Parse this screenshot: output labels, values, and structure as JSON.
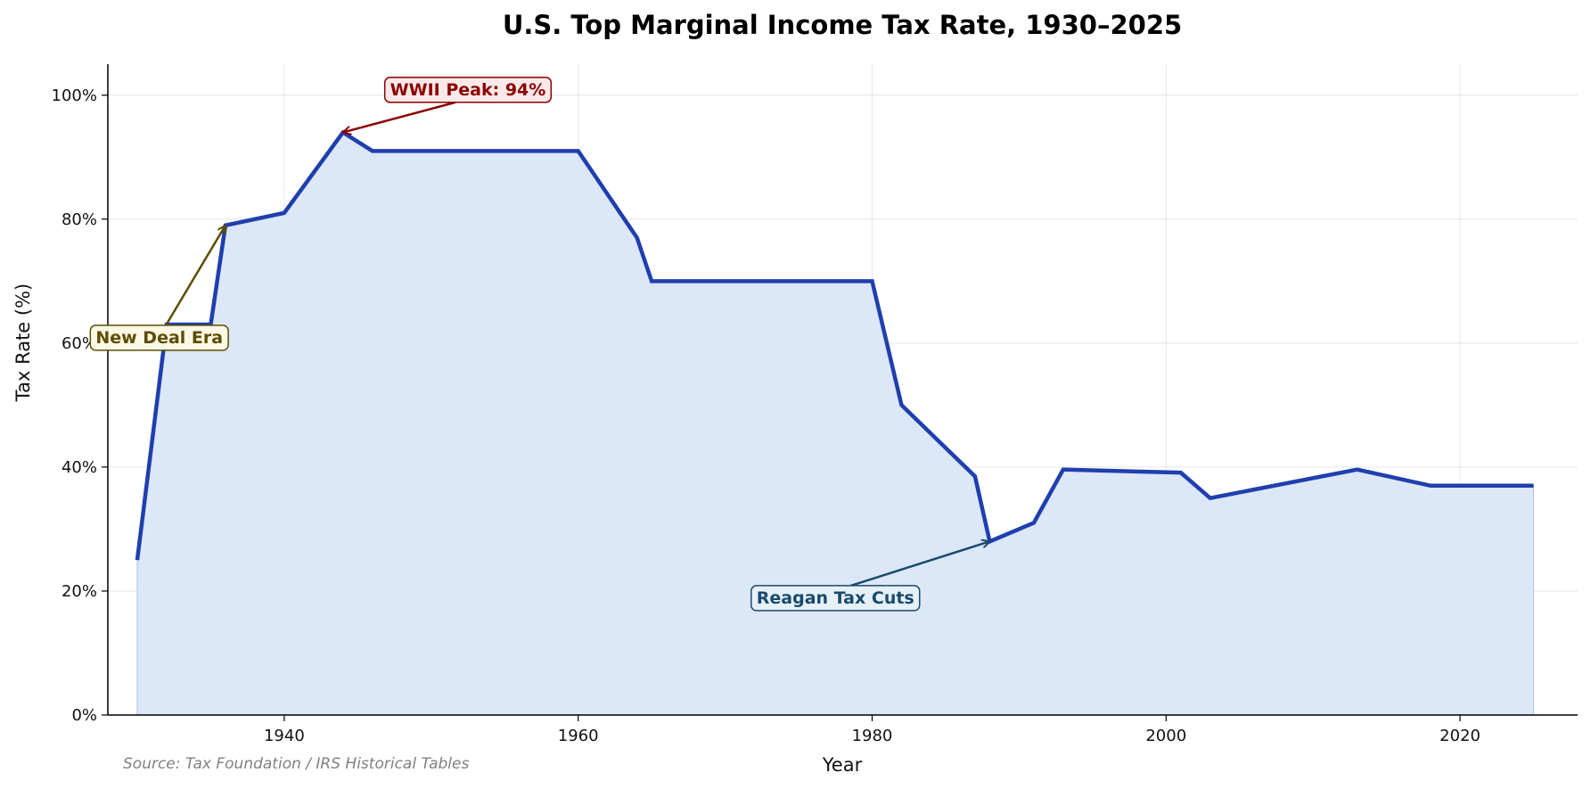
{
  "chart_data": {
    "type": "area",
    "title": "U.S. Top Marginal Income Tax Rate, 1930–2025",
    "xlabel": "Year",
    "ylabel": "Tax Rate (%)",
    "xlim": [
      1928,
      2028
    ],
    "ylim": [
      0,
      105
    ],
    "x_ticks": [
      1940,
      1960,
      1980,
      2000,
      2020
    ],
    "y_ticks": [
      0,
      20,
      40,
      60,
      80,
      100
    ],
    "y_tick_labels": [
      "0%",
      "20%",
      "40%",
      "60%",
      "80%",
      "100%"
    ],
    "grid": true,
    "series": [
      {
        "x": [
          1930,
          1932,
          1935,
          1936,
          1940,
          1944,
          1946,
          1960,
          1964,
          1965,
          1980,
          1982,
          1987,
          1988,
          1991,
          1993,
          2001,
          2003,
          2013,
          2018,
          2025
        ],
        "y": [
          25,
          63,
          63,
          79,
          81,
          94,
          91,
          91,
          77,
          70,
          70,
          50,
          38.5,
          28,
          31,
          39.6,
          39.1,
          35,
          39.6,
          37,
          37
        ],
        "color": "#1f3fae",
        "fill": "#dce7f7"
      }
    ],
    "annotations": [
      {
        "text": "WWII Peak: 94%",
        "x": 1944,
        "y": 94,
        "color": "#8b0000",
        "bg": "#fbe9e9",
        "tx": 1952.5,
        "ty": 101
      },
      {
        "text": "New Deal Era",
        "x": 1936,
        "y": 79,
        "color": "#5c4d00",
        "bg": "#fbf8e6",
        "tx": 1931.5,
        "ty": 61
      },
      {
        "text": "Reagan Tax Cuts",
        "x": 1988,
        "y": 28,
        "color": "#1a4a6e",
        "bg": "#e6f0f7",
        "tx": 1977.5,
        "ty": 19
      }
    ],
    "source": "Source: Tax Foundation / IRS Historical Tables"
  }
}
